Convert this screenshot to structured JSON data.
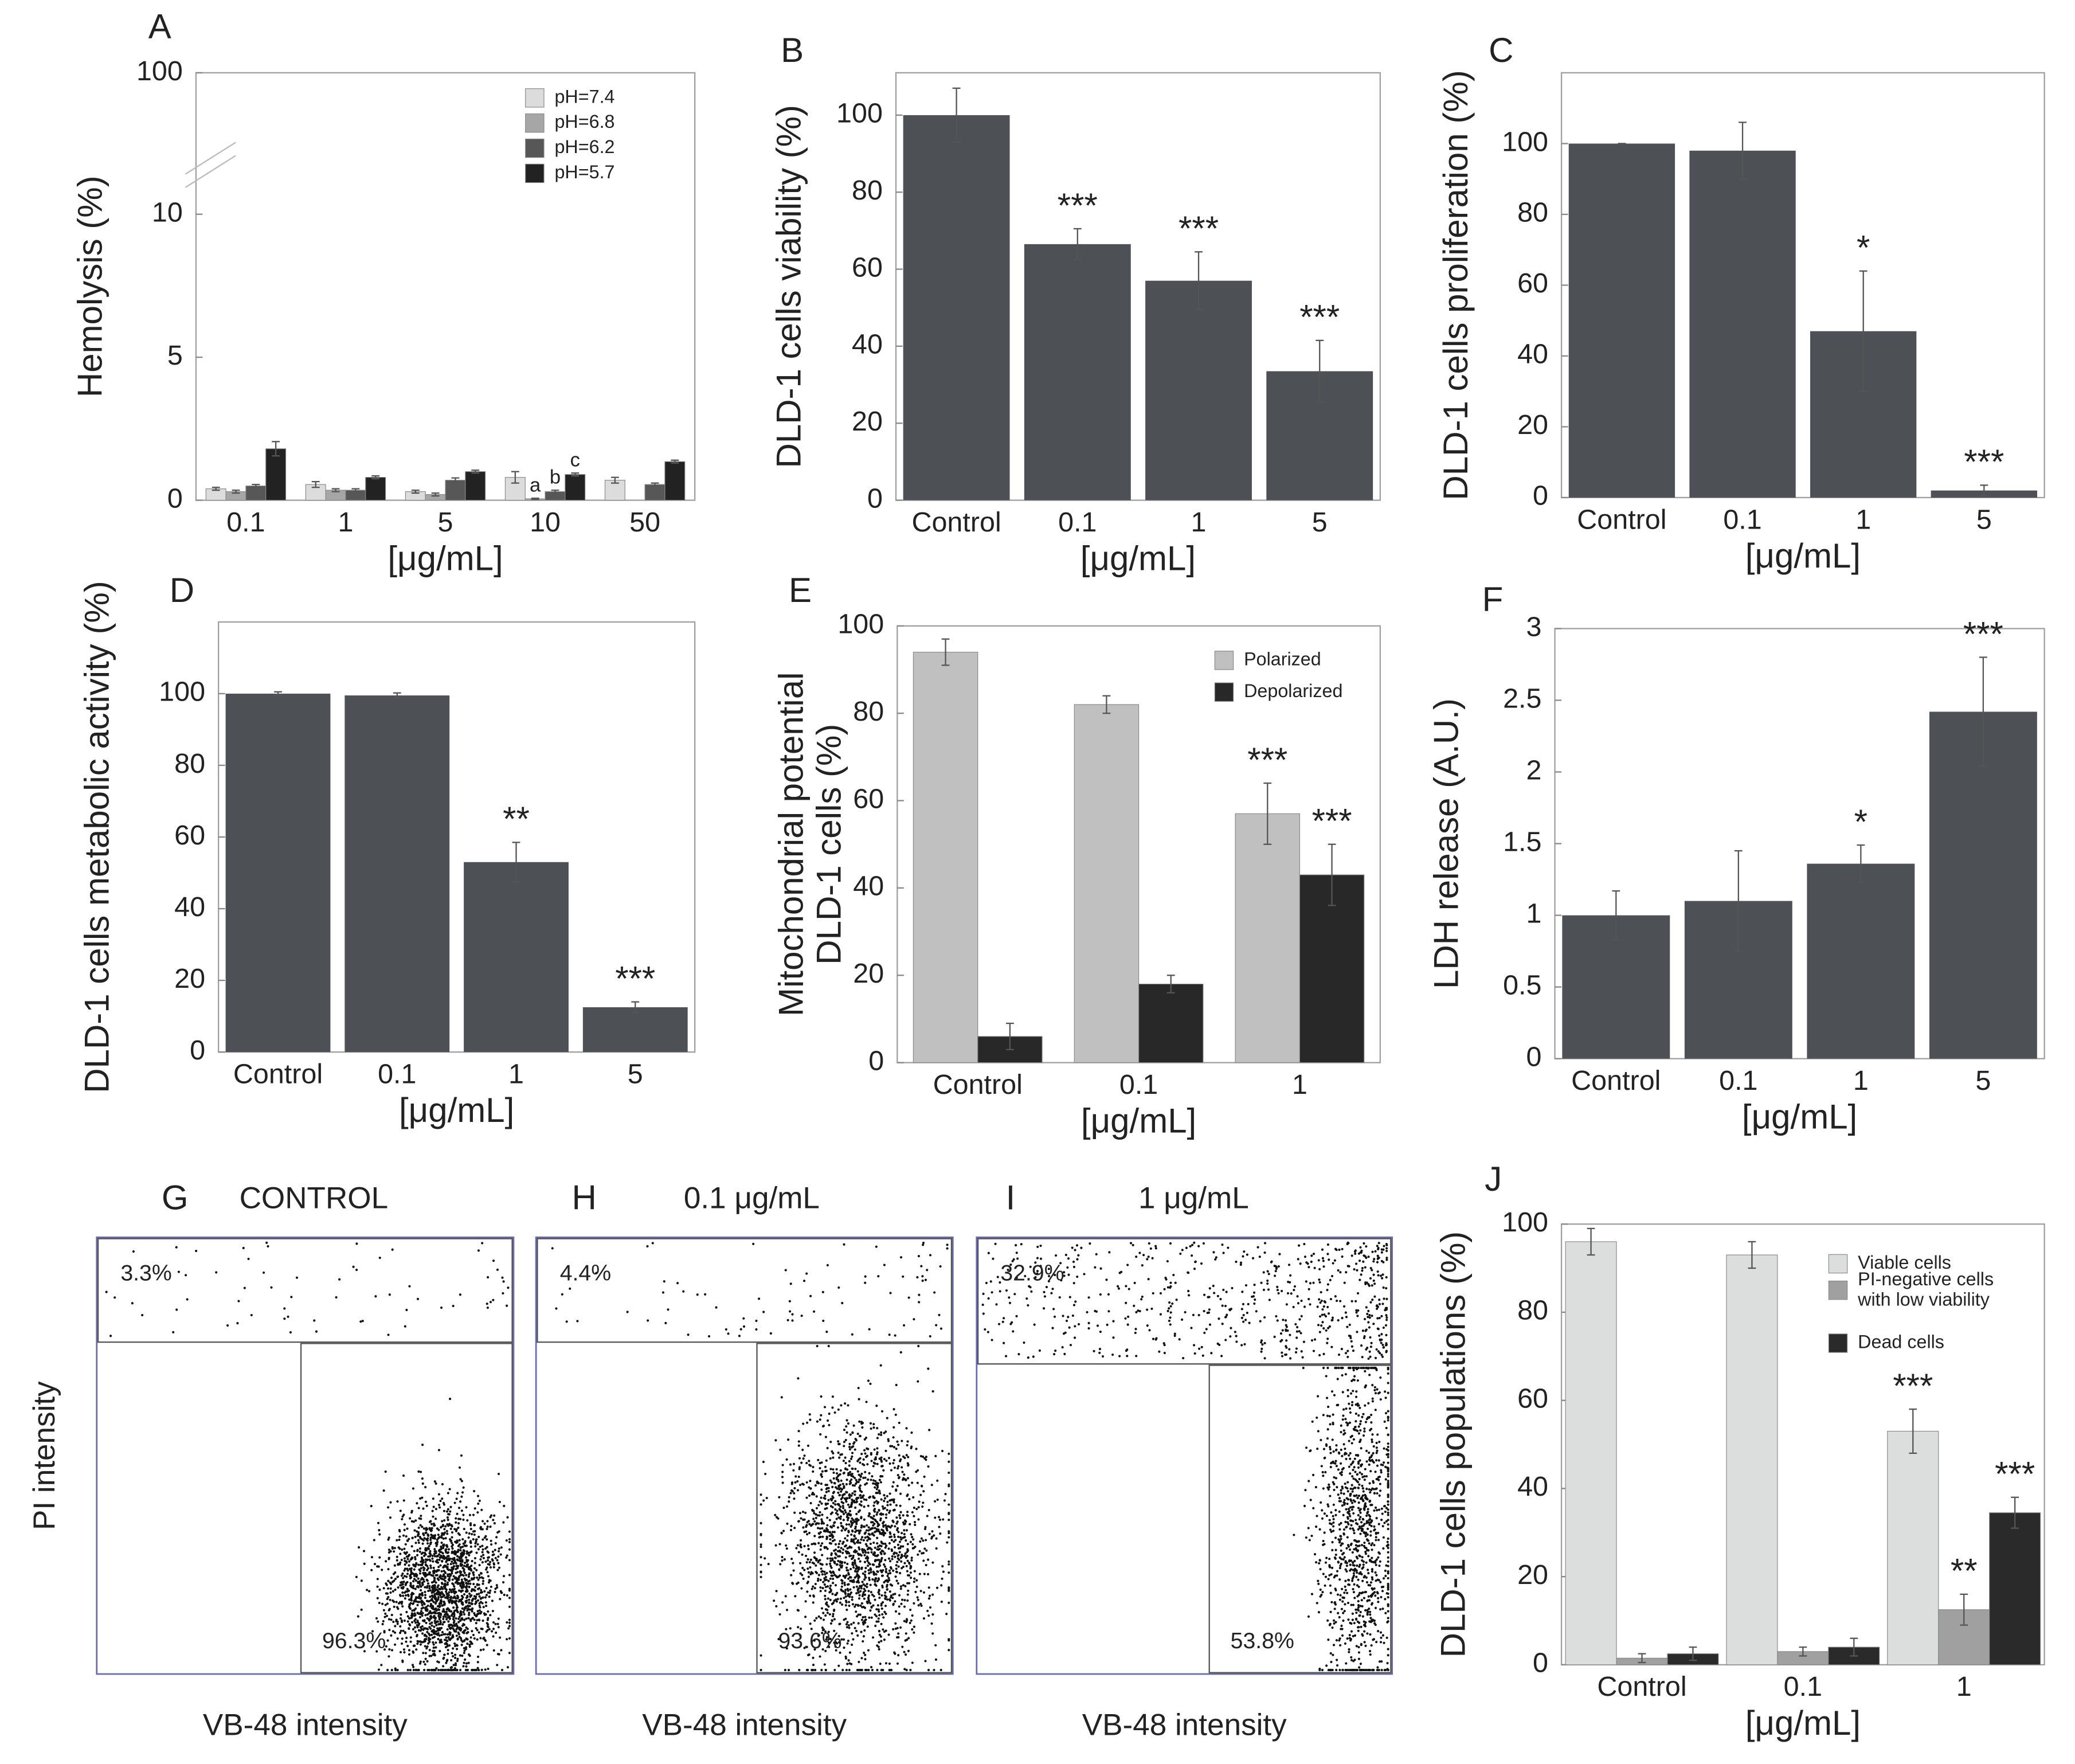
{
  "chart_data": [
    {
      "type": "bar",
      "label": "A",
      "ylabel": "Hemolysis (%)",
      "xlabel": "[μg/mL]",
      "categories": [
        "0.1",
        "1",
        "5",
        "10",
        "50"
      ],
      "ylim": [
        0,
        100
      ],
      "yticks": [
        0,
        5,
        10,
        100
      ],
      "y_break": true,
      "legend": "upper right",
      "series": [
        {
          "name": "pH=7.4",
          "color": "#dcdcdc",
          "values": [
            0.4,
            0.55,
            0.3,
            0.8,
            0.7
          ],
          "errors": [
            0.05,
            0.1,
            0.05,
            0.2,
            0.1
          ]
        },
        {
          "name": "pH=6.8",
          "color": "#a6a6a6",
          "values": [
            0.3,
            0.35,
            0.2,
            0.05,
            null
          ],
          "errors": [
            0.05,
            0.05,
            0.05,
            0.02,
            null
          ],
          "significance": [
            null,
            null,
            null,
            "a",
            null
          ]
        },
        {
          "name": "pH=6.2",
          "color": "#575757",
          "values": [
            0.5,
            0.35,
            0.7,
            0.3,
            0.55
          ],
          "errors": [
            0.05,
            0.05,
            0.08,
            0.05,
            0.05
          ],
          "significance": [
            null,
            null,
            null,
            "b",
            null
          ]
        },
        {
          "name": "pH=5.7",
          "color": "#222222",
          "values": [
            1.8,
            0.8,
            1.0,
            0.9,
            1.35
          ],
          "errors": [
            0.25,
            0.05,
            0.05,
            0.05,
            0.05
          ],
          "significance": [
            null,
            null,
            null,
            "c",
            null
          ]
        }
      ]
    },
    {
      "type": "bar",
      "label": "B",
      "ylabel": "DLD-1 cells viability (%)",
      "xlabel": "[μg/mL]",
      "categories": [
        "Control",
        "0.1",
        "1",
        "5"
      ],
      "color": "#4d5155",
      "values": [
        100,
        66.5,
        57,
        33.5
      ],
      "errors": [
        7,
        4,
        7.5,
        8
      ],
      "significance": [
        null,
        "***",
        "***",
        "***"
      ],
      "ylim": [
        0,
        111
      ],
      "yticks": [
        0,
        20,
        40,
        60,
        80,
        100
      ]
    },
    {
      "type": "bar",
      "label": "C",
      "ylabel": "DLD-1 cells proliferation (%)",
      "xlabel": "[μg/mL]",
      "categories": [
        "Control",
        "0.1",
        "1",
        "5"
      ],
      "color": "#4d5155",
      "values": [
        100,
        98,
        47,
        2
      ],
      "errors": [
        0,
        8,
        17,
        1.5
      ],
      "significance": [
        null,
        null,
        "*",
        "***"
      ],
      "ylim": [
        0,
        120
      ],
      "yticks": [
        0,
        20,
        40,
        60,
        80,
        100
      ]
    },
    {
      "type": "bar",
      "label": "D",
      "ylabel": "DLD-1 cells metabolic activity (%)",
      "xlabel": "[μg/mL]",
      "categories": [
        "Control",
        "0.1",
        "1",
        "5"
      ],
      "color": "#4d5155",
      "values": [
        100,
        99.5,
        53,
        12.5
      ],
      "errors": [
        0.5,
        0.7,
        5.5,
        1.5
      ],
      "significance": [
        null,
        null,
        "**",
        "***"
      ],
      "ylim": [
        0,
        120
      ],
      "yticks": [
        0,
        20,
        40,
        60,
        80,
        100
      ]
    },
    {
      "type": "bar",
      "label": "E",
      "ylabel": "Mitochondrial potential\nDLD-1 cells (%)",
      "xlabel": "[μg/mL]",
      "categories": [
        "Control",
        "0.1",
        "1"
      ],
      "ylim": [
        0,
        100
      ],
      "yticks": [
        0,
        20,
        40,
        60,
        80,
        100
      ],
      "legend": "upper right",
      "series": [
        {
          "name": "Polarized",
          "color": "#c0c0c0",
          "values": [
            94,
            82,
            57
          ],
          "errors": [
            3,
            2,
            7
          ],
          "significance": [
            null,
            null,
            "***"
          ]
        },
        {
          "name": "Depolarized",
          "color": "#282828",
          "values": [
            6,
            18,
            43
          ],
          "errors": [
            3,
            2,
            7
          ],
          "significance": [
            null,
            null,
            "***"
          ]
        }
      ]
    },
    {
      "type": "bar",
      "label": "F",
      "ylabel": "LDH release (A.U.)",
      "xlabel": "[μg/mL]",
      "categories": [
        "Control",
        "0.1",
        "1",
        "5"
      ],
      "color": "#4d5155",
      "values": [
        1,
        1.1,
        1.36,
        2.42
      ],
      "errors": [
        0.17,
        0.35,
        0.13,
        0.38
      ],
      "significance": [
        null,
        null,
        "*",
        "***"
      ],
      "ylim": [
        0,
        3
      ],
      "yticks": [
        0,
        0.5,
        1,
        1.5,
        2,
        2.5,
        3
      ]
    },
    {
      "type": "flow",
      "label": "G",
      "title": "CONTROL",
      "xlabel": "VB-48 intensity",
      "ylabel": "PI intensity",
      "values": [
        3.3,
        96.3
      ],
      "value_labels": [
        "3.3%",
        "96.3%"
      ]
    },
    {
      "type": "flow",
      "label": "H",
      "title": "0.1 μg/mL",
      "xlabel": "VB-48 intensity",
      "values": [
        4.4,
        93.6
      ],
      "value_labels": [
        "4.4%",
        "93.6%"
      ]
    },
    {
      "type": "flow",
      "label": "I",
      "title": "1 μg/mL",
      "xlabel": "VB-48 intensity",
      "values": [
        32.9,
        53.8
      ],
      "value_labels": [
        "32.9%",
        "53.8%"
      ]
    },
    {
      "type": "bar",
      "label": "J",
      "ylabel": "DLD-1 cells populations (%)",
      "xlabel": "[μg/mL]",
      "categories": [
        "Control",
        "0.1",
        "1"
      ],
      "ylim": [
        0,
        100
      ],
      "yticks": [
        0,
        20,
        40,
        60,
        80,
        100
      ],
      "legend": "upper right",
      "series": [
        {
          "name": "Viable cells",
          "color": "#dcdedd",
          "values": [
            96,
            93,
            53
          ],
          "errors": [
            3,
            3,
            5
          ],
          "significance": [
            null,
            null,
            "***"
          ]
        },
        {
          "name": "PI-negative cells\nwith low viability",
          "color": "#a0a0a0",
          "values": [
            1.5,
            3,
            12.5
          ],
          "errors": [
            1,
            1,
            3.5
          ],
          "significance": [
            null,
            null,
            "**"
          ]
        },
        {
          "name": "Dead cells",
          "color": "#2a2a2a",
          "values": [
            2.5,
            4,
            34.5
          ],
          "errors": [
            1.5,
            2,
            3.5
          ],
          "significance": [
            null,
            null,
            "***"
          ]
        }
      ]
    }
  ]
}
